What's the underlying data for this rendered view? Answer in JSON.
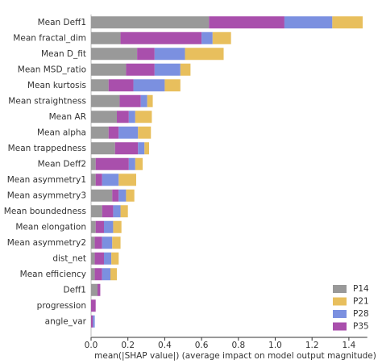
{
  "chart_data": {
    "type": "stacked-barh",
    "xlabel": "mean(|SHAP value|) (average impact on model output magnitude)",
    "categories": [
      "Mean Deff1",
      "Mean fractal_dim",
      "Mean D_fit",
      "Mean MSD_ratio",
      "Mean kurtosis",
      "Mean straightness",
      "Mean AR",
      "Mean alpha",
      "Mean trappedness",
      "Mean Deff2",
      "Mean asymmetry1",
      "Mean asymmetry3",
      "Mean boundedness",
      "Mean elongation",
      "Mean asymmetry2",
      "dist_net",
      "Mean efficiency",
      "Deff1",
      "progression",
      "angle_var"
    ],
    "series": [
      {
        "name": "P14",
        "color": "#999999",
        "values": [
          0.64,
          0.16,
          0.25,
          0.19,
          0.095,
          0.155,
          0.14,
          0.095,
          0.13,
          0.025,
          0.025,
          0.115,
          0.06,
          0.025,
          0.02,
          0.02,
          0.02,
          0.035,
          0,
          0
        ]
      },
      {
        "name": "P21",
        "color": "#e8bf5d",
        "values": [
          0.165,
          0.1,
          0.21,
          0.055,
          0.085,
          0.03,
          0.09,
          0.07,
          0.025,
          0.04,
          0.095,
          0.045,
          0.04,
          0.045,
          0.045,
          0.04,
          0.035,
          0,
          0,
          0
        ]
      },
      {
        "name": "P28",
        "color": "#7b90e0",
        "values": [
          0.26,
          0.06,
          0.165,
          0.14,
          0.17,
          0.035,
          0.035,
          0.105,
          0.035,
          0.035,
          0.09,
          0.04,
          0.04,
          0.05,
          0.055,
          0.04,
          0.045,
          0,
          0,
          0.01
        ]
      },
      {
        "name": "P35",
        "color": "#a94fac",
        "values": [
          0.41,
          0.44,
          0.095,
          0.155,
          0.135,
          0.115,
          0.065,
          0.055,
          0.125,
          0.18,
          0.035,
          0.035,
          0.06,
          0.045,
          0.04,
          0.05,
          0.04,
          0.015,
          0.025,
          0.01
        ]
      }
    ],
    "stack_order": [
      0,
      3,
      2,
      1
    ],
    "xlim": [
      0,
      1.5
    ],
    "xticks": [
      {
        "value": 0,
        "label": "0.0"
      },
      0.2,
      0.4,
      0.6,
      0.8,
      {
        "value": 1,
        "label": "1.0"
      },
      1.2,
      1.4
    ],
    "legend": "lower right"
  }
}
